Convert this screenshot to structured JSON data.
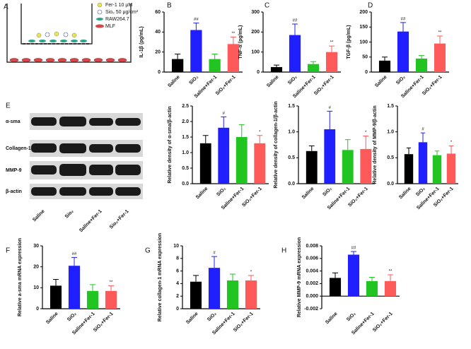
{
  "schematic": {
    "panel": "A",
    "legend": [
      "Fer-1 10 μM",
      "Sio₂ 50 μg/cm²",
      "RAW264.7",
      "MLF"
    ]
  },
  "blot": {
    "bands": [
      "α-sma",
      "Collagen-1",
      "MMP-9",
      "β-actin"
    ],
    "lanes": [
      "Saline",
      "Sio₂",
      "Saline+Fer-1",
      "Sio₂+Fer-1"
    ]
  },
  "chart_data": [
    {
      "type": "bar",
      "panel": "B",
      "ylabel": "IL-1β (pg/mL)",
      "categories": [
        "Saline",
        "SiO₂",
        "Saline+Fer-1",
        "SiO₂+Fer-1"
      ],
      "colors": [
        "#000000",
        "#1f1fff",
        "#22c422",
        "#ff5a5a"
      ],
      "values": [
        13,
        42,
        13,
        28
      ],
      "errors": [
        5,
        7,
        5,
        7
      ],
      "annotations": [
        null,
        "##",
        null,
        "**"
      ],
      "ylim": [
        0,
        60
      ],
      "yticks": [
        0,
        20,
        40,
        60
      ]
    },
    {
      "type": "bar",
      "panel": "C",
      "ylabel": "TNF-α (pg/mL)",
      "categories": [
        "Saline",
        "SiO₂",
        "Saline+Fer-1",
        "SiO₂+Fer-1"
      ],
      "colors": [
        "#000000",
        "#1f1fff",
        "#22c422",
        "#ff5a5a"
      ],
      "values": [
        25,
        185,
        40,
        100
      ],
      "errors": [
        10,
        55,
        12,
        30
      ],
      "annotations": [
        null,
        "##",
        null,
        "**"
      ],
      "ylim": [
        0,
        300
      ],
      "yticks": [
        0,
        100,
        200,
        300
      ]
    },
    {
      "type": "bar",
      "panel": "D",
      "ylabel": "TGF-β (pg/mL)",
      "categories": [
        "Saline",
        "SiO₂",
        "Saline+Fer-1",
        "SiO₂+Fer-1"
      ],
      "colors": [
        "#000000",
        "#1f1fff",
        "#22c422",
        "#ff5a5a"
      ],
      "values": [
        38,
        135,
        45,
        95
      ],
      "errors": [
        12,
        30,
        10,
        25
      ],
      "annotations": [
        null,
        "##",
        null,
        "**"
      ],
      "ylim": [
        0,
        200
      ],
      "yticks": [
        0,
        50,
        100,
        150,
        200
      ]
    },
    {
      "type": "bar",
      "panel": "E",
      "ylabel": "Relative density of α-sma/β-actin",
      "categories": [
        "Saline",
        "SiO₂",
        "Saline+Fer-1",
        "SiO₂+Fer-1"
      ],
      "colors": [
        "#000000",
        "#1f1fff",
        "#22c422",
        "#ff5a5a"
      ],
      "values": [
        1.3,
        1.8,
        1.5,
        1.3
      ],
      "errors": [
        0.25,
        0.35,
        0.4,
        0.25
      ],
      "annotations": [
        null,
        "#",
        null,
        "*"
      ],
      "ylim": [
        0,
        2.5
      ],
      "yticks": [
        {
          "value": 0,
          "label": "0.0"
        },
        0.5,
        {
          "value": 1,
          "label": "1.0"
        },
        1.5,
        {
          "value": 2,
          "label": "2.0"
        },
        2.5
      ]
    },
    {
      "type": "bar",
      "ylabel": "Relative density of collagen-1/β-actin",
      "categories": [
        "Saline",
        "SiO₂",
        "Saline+Fer-1",
        "SiO₂+Fer-1"
      ],
      "colors": [
        "#000000",
        "#1f1fff",
        "#22c422",
        "#ff5a5a"
      ],
      "values": [
        0.63,
        1.05,
        0.65,
        0.67
      ],
      "errors": [
        0.1,
        0.35,
        0.2,
        0.25
      ],
      "annotations": [
        null,
        "#",
        null,
        "*"
      ],
      "ylim": [
        0,
        1.5
      ],
      "yticks": [
        {
          "value": 0,
          "label": "0.0"
        },
        0.5,
        {
          "value": 1,
          "label": "1.0"
        },
        1.5
      ]
    },
    {
      "type": "bar",
      "ylabel": "Relative density of MMP-9/β-actin",
      "categories": [
        "Saline",
        "SiO₂",
        "Saline+Fer-1",
        "SiO₂+Fer-1"
      ],
      "colors": [
        "#000000",
        "#1f1fff",
        "#22c422",
        "#ff5a5a"
      ],
      "values": [
        0.57,
        0.8,
        0.55,
        0.58
      ],
      "errors": [
        0.12,
        0.18,
        0.08,
        0.15
      ],
      "annotations": [
        null,
        "#",
        null,
        "*"
      ],
      "ylim": [
        0,
        1.5
      ],
      "yticks": [
        {
          "value": 0,
          "label": "0.0"
        },
        0.5,
        {
          "value": 1,
          "label": "1.0"
        },
        1.5
      ]
    },
    {
      "type": "bar",
      "panel": "F",
      "ylabel": "Relative a-sma mRNA expression",
      "categories": [
        "Saline",
        "SiO₂",
        "Saline+Fer-1",
        "SiO₂+Fer-1"
      ],
      "colors": [
        "#000000",
        "#1f1fff",
        "#22c422",
        "#ff5a5a"
      ],
      "values": [
        11,
        20.5,
        8.5,
        8.5
      ],
      "errors": [
        3,
        4,
        3,
        2.5
      ],
      "annotations": [
        null,
        "##",
        null,
        "**"
      ],
      "ylim": [
        0,
        30
      ],
      "yticks": [
        0,
        10,
        20,
        30
      ]
    },
    {
      "type": "bar",
      "panel": "G",
      "ylabel": "Relative collagen-1 mRNA expression",
      "categories": [
        "Saline",
        "SiO₂",
        "Saline+Fer-1",
        "SiO₂+Fer-1"
      ],
      "colors": [
        "#000000",
        "#1f1fff",
        "#22c422",
        "#ff5a5a"
      ],
      "values": [
        4.3,
        6.5,
        4.5,
        4.5
      ],
      "errors": [
        1,
        1.8,
        1,
        0.8
      ],
      "annotations": [
        null,
        "#",
        null,
        "*"
      ],
      "ylim": [
        0,
        10
      ],
      "yticks": [
        0,
        2,
        4,
        6,
        8,
        10
      ]
    },
    {
      "type": "bar",
      "panel": "H",
      "ylabel": "Relative MMP-9 mRNA expression",
      "categories": [
        "Saline",
        "SiO₂",
        "Saline+Fer-1",
        "SiO₂+Fer-1"
      ],
      "colors": [
        "#000000",
        "#1f1fff",
        "#22c422",
        "#ff5a5a"
      ],
      "values": [
        0.0029,
        0.0066,
        0.0024,
        0.0024
      ],
      "errors": [
        0.0008,
        0.0005,
        0.0006,
        0.001
      ],
      "annotations": [
        null,
        "##",
        null,
        "**"
      ],
      "ylim": [
        -0.002,
        0.008
      ],
      "yticks": [
        -0.002,
        {
          "value": 0,
          "label": "0.000"
        },
        0.002,
        0.004,
        0.006,
        0.008
      ]
    }
  ]
}
